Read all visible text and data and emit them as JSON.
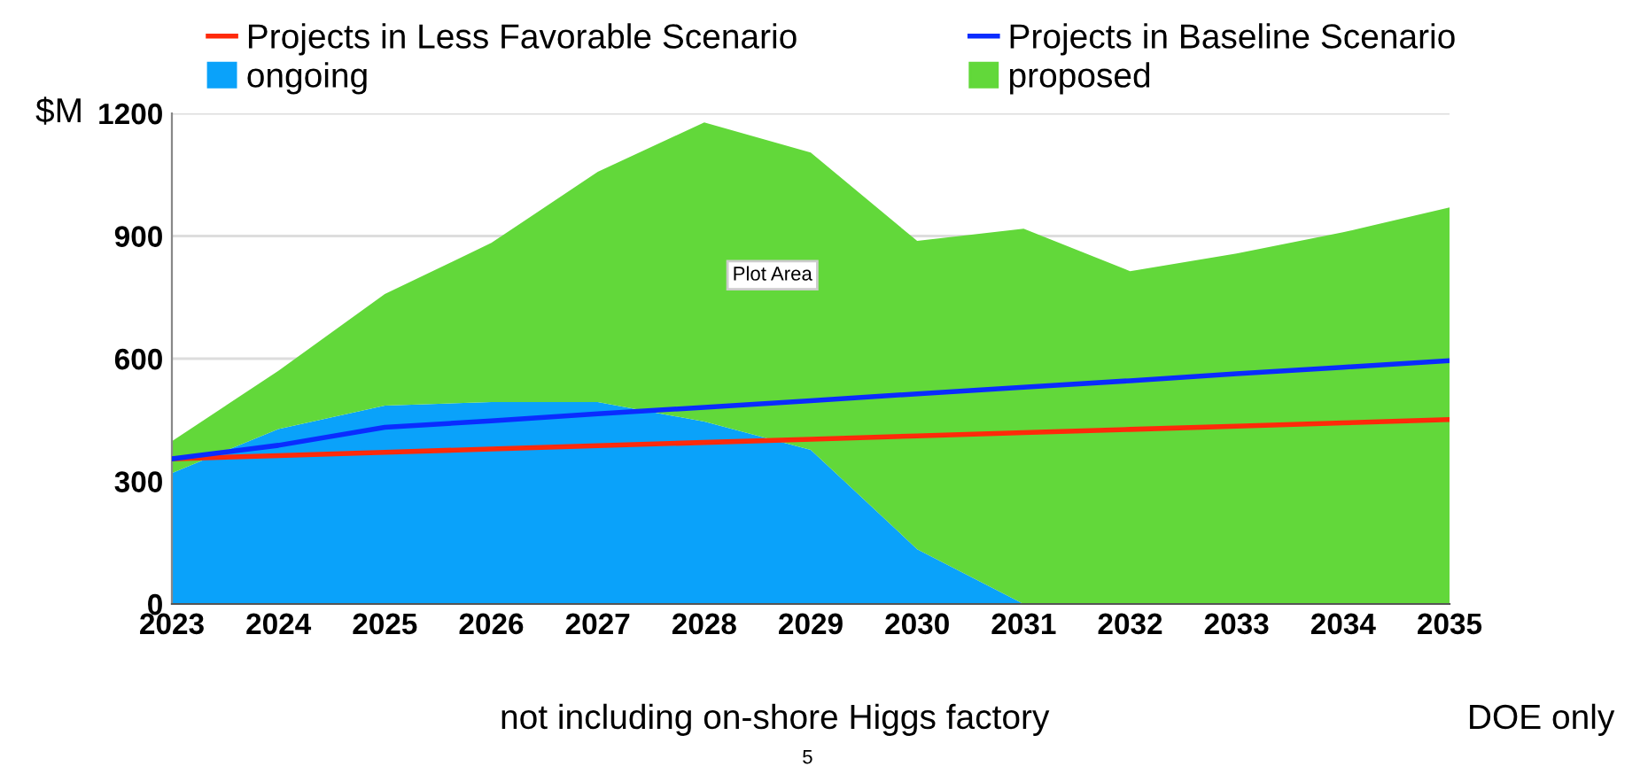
{
  "chart_data": {
    "type": "area",
    "stacked": true,
    "ylabel": "$M",
    "categories": [
      "2023",
      "2024",
      "2025",
      "2026",
      "2027",
      "2028",
      "2029",
      "2030",
      "2031",
      "2032",
      "2033",
      "2034",
      "2035"
    ],
    "series": [
      {
        "name": "ongoing",
        "color": "#0aa2fa",
        "values": [
          320,
          428,
          485,
          494,
          494,
          446,
          377,
          134,
          0,
          0,
          0,
          0,
          0
        ]
      },
      {
        "name": "proposed",
        "color": "#62d83a",
        "values": [
          78,
          142,
          273,
          389,
          563,
          732,
          727,
          754,
          918,
          814,
          857,
          909,
          970
        ]
      },
      {
        "name": "Projects in Less Favorable Scenario",
        "type": "line",
        "color": "#ff2a0a",
        "values": [
          355,
          363,
          371,
          379,
          387,
          395,
          403,
          411,
          419,
          427,
          435,
          443,
          451
        ]
      },
      {
        "name": "Projects in Baseline Scenario",
        "type": "line",
        "color": "#0a2cff",
        "values": [
          355,
          388,
          432,
          448,
          465,
          481,
          497,
          514,
          530,
          546,
          563,
          579,
          595
        ]
      }
    ],
    "ylim": [
      0,
      1200
    ],
    "yticks": [
      0,
      300,
      600,
      900,
      1200
    ],
    "grid": "y",
    "legend": "top",
    "annotations": [
      "Plot Area",
      "not including on-shore Higgs factory",
      "DOE only",
      "5"
    ]
  }
}
